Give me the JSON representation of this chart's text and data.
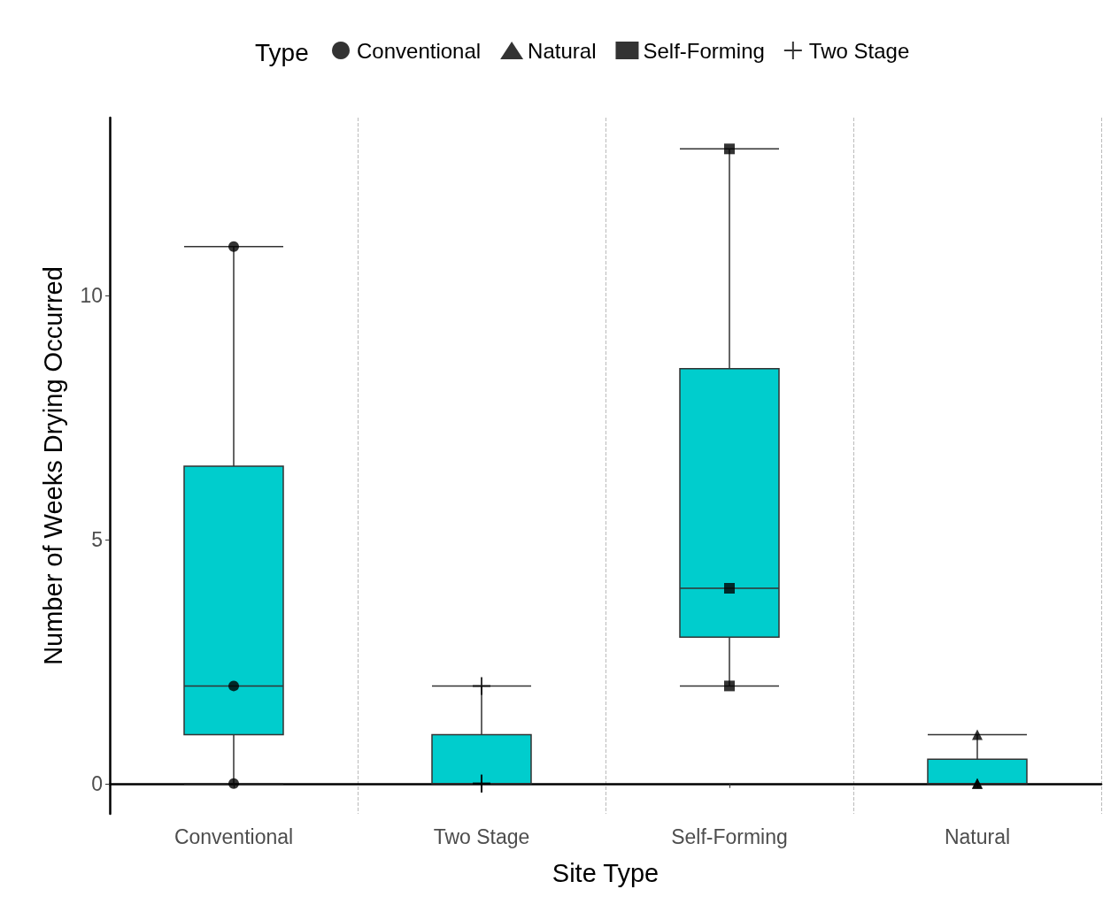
{
  "chart_data": {
    "type": "box",
    "xlabel": "Site Type",
    "ylabel": "Number of Weeks Drying Occurred",
    "legend_title": "Type",
    "legend": "top",
    "grid": "x",
    "color": "#00cdcd",
    "categories": [
      "Conventional",
      "Two Stage",
      "Self-Forming",
      "Natural"
    ],
    "boxes": [
      {
        "low": 0,
        "q1": 1,
        "median": 2,
        "q3": 6.5,
        "high": 11
      },
      {
        "low": 0,
        "q1": 0,
        "median": 0,
        "q3": 1,
        "high": 2
      },
      {
        "low": 2,
        "q1": 3,
        "median": 4,
        "q3": 8.5,
        "high": 13
      },
      {
        "low": 0,
        "q1": 0,
        "median": 0,
        "q3": 0.5,
        "high": 1
      }
    ],
    "ylim": [
      -0.62,
      13.64
    ],
    "yticks": [
      0,
      5,
      10
    ],
    "series": [
      {
        "name": "Conventional",
        "type": "scatter",
        "marker": "circle",
        "color": "#000000",
        "x": [
          "Conventional",
          "Conventional",
          "Conventional"
        ],
        "values": [
          11,
          2,
          0
        ]
      },
      {
        "name": "Natural",
        "type": "scatter",
        "marker": "triangle",
        "color": "#000000",
        "x": [
          "Natural",
          "Natural",
          "Natural"
        ],
        "values": [
          1,
          0,
          0
        ]
      },
      {
        "name": "Self-Forming",
        "type": "scatter",
        "marker": "square",
        "color": "#000000",
        "x": [
          "Self-Forming",
          "Self-Forming",
          "Self-Forming"
        ],
        "values": [
          13,
          4,
          2
        ]
      },
      {
        "name": "Two Stage",
        "type": "scatter",
        "marker": "cross",
        "color": "#000000",
        "x": [
          "Two Stage",
          "Two Stage",
          "Two Stage"
        ],
        "values": [
          2,
          0,
          0
        ]
      }
    ]
  }
}
